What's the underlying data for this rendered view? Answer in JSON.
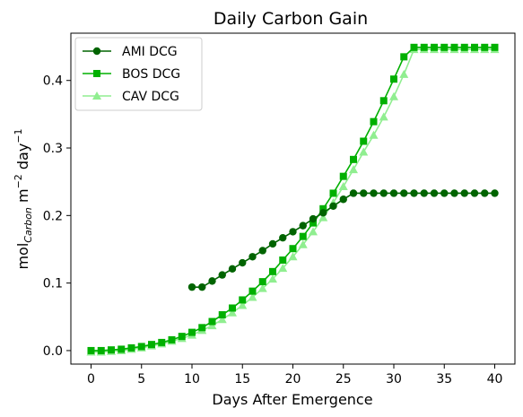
{
  "chart_data": {
    "type": "line",
    "title": "Daily Carbon Gain",
    "xlabel": "Days After Emergence",
    "ylabel": {
      "main": "mol",
      "sub": "Carbon",
      "rest": " m",
      "sup1": "−2",
      "rest2": " day",
      "sup2": "−1"
    },
    "xlim": [
      -2,
      42
    ],
    "ylim": [
      -0.02,
      0.47
    ],
    "xticks": [
      0,
      5,
      10,
      15,
      20,
      25,
      30,
      35,
      40
    ],
    "yticks": [
      0.0,
      0.1,
      0.2,
      0.3,
      0.4
    ],
    "xtick_labels": [
      "0",
      "5",
      "10",
      "15",
      "20",
      "25",
      "30",
      "35",
      "40"
    ],
    "ytick_labels": [
      "0.0",
      "0.1",
      "0.2",
      "0.3",
      "0.4"
    ],
    "legend_position": "top-left",
    "grid": false,
    "series": [
      {
        "name": "AMI DCG",
        "color": "#006400",
        "marker": "circle",
        "x": [
          10,
          11,
          12,
          13,
          14,
          15,
          16,
          17,
          18,
          19,
          20,
          21,
          22,
          23,
          24,
          25,
          26,
          27,
          28,
          29,
          30,
          31,
          32,
          33,
          34,
          35,
          36,
          37,
          38,
          39,
          40
        ],
        "values": [
          0.094,
          0.094,
          0.103,
          0.112,
          0.121,
          0.13,
          0.139,
          0.148,
          0.158,
          0.167,
          0.176,
          0.185,
          0.195,
          0.204,
          0.214,
          0.224,
          0.233,
          0.233,
          0.233,
          0.233,
          0.233,
          0.233,
          0.233,
          0.233,
          0.233,
          0.233,
          0.233,
          0.233,
          0.233,
          0.233,
          0.233
        ]
      },
      {
        "name": "BOS DCG",
        "color": "#00B000",
        "marker": "square",
        "x": [
          0,
          1,
          2,
          3,
          4,
          5,
          6,
          7,
          8,
          9,
          10,
          11,
          12,
          13,
          14,
          15,
          16,
          17,
          18,
          19,
          20,
          21,
          22,
          23,
          24,
          25,
          26,
          27,
          28,
          29,
          30,
          31,
          32,
          33,
          34,
          35,
          36,
          37,
          38,
          39,
          40
        ],
        "values": [
          0.0,
          0.0,
          0.001,
          0.002,
          0.004,
          0.006,
          0.009,
          0.012,
          0.016,
          0.021,
          0.027,
          0.034,
          0.043,
          0.053,
          0.063,
          0.075,
          0.088,
          0.102,
          0.117,
          0.134,
          0.151,
          0.169,
          0.189,
          0.21,
          0.233,
          0.258,
          0.283,
          0.31,
          0.339,
          0.37,
          0.402,
          0.435,
          0.449,
          0.449,
          0.449,
          0.449,
          0.449,
          0.449,
          0.449,
          0.449,
          0.449
        ]
      },
      {
        "name": "CAV DCG",
        "color": "#90EE90",
        "marker": "triangle",
        "x": [
          0,
          1,
          2,
          3,
          4,
          5,
          6,
          7,
          8,
          9,
          10,
          11,
          12,
          13,
          14,
          15,
          16,
          17,
          18,
          19,
          20,
          21,
          22,
          23,
          24,
          25,
          26,
          27,
          28,
          29,
          30,
          31,
          32,
          33,
          34,
          35,
          36,
          37,
          38,
          39,
          40
        ],
        "values": [
          -0.002,
          -0.002,
          -0.001,
          0.0,
          0.002,
          0.004,
          0.007,
          0.01,
          0.014,
          0.018,
          0.023,
          0.03,
          0.037,
          0.046,
          0.056,
          0.067,
          0.079,
          0.092,
          0.106,
          0.122,
          0.139,
          0.157,
          0.176,
          0.197,
          0.219,
          0.243,
          0.268,
          0.294,
          0.319,
          0.346,
          0.376,
          0.409,
          0.446,
          0.446,
          0.446,
          0.446,
          0.446,
          0.446,
          0.446,
          0.446,
          0.446
        ]
      }
    ]
  }
}
